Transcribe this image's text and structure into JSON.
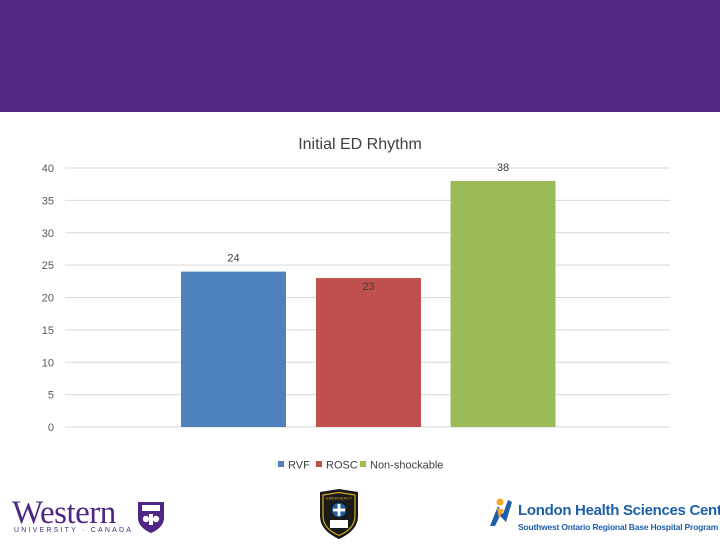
{
  "logos": {
    "western": {
      "word": "Western",
      "sub": "UNIVERSITY · CANADA"
    },
    "ems": {
      "text": "EMERGENCY"
    },
    "lhsc": {
      "name": "London Health Sciences Centre",
      "sub": "Southwest Ontario Regional Base Hospital Program"
    }
  },
  "colors": {
    "header": "#522784",
    "gridline": "#d9d9d9"
  },
  "chart_data": {
    "type": "bar",
    "title": "Initial ED Rhythm",
    "categories": [
      "RVF",
      "ROSC",
      "Non-shockable"
    ],
    "series": [
      {
        "name": "RVF",
        "value": 24,
        "color": "#4f81bd"
      },
      {
        "name": "ROSC",
        "value": 23,
        "color": "#c0504d"
      },
      {
        "name": "Non-shockable",
        "value": 38,
        "color": "#9bbb59"
      }
    ],
    "yticks": [
      0,
      5,
      10,
      15,
      20,
      25,
      30,
      35,
      40
    ],
    "ylim": [
      0,
      40
    ],
    "grid": true,
    "legend": "bottom",
    "xlabel": "",
    "ylabel": ""
  }
}
